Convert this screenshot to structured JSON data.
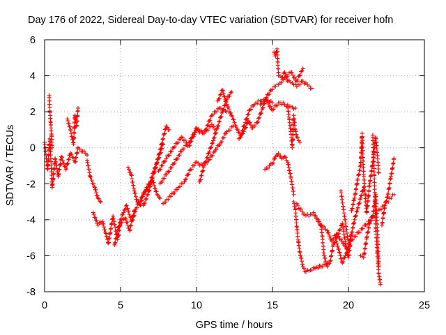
{
  "chart_data": {
    "type": "scatter",
    "title": "Day 176 of 2022, Sidereal Day-to-day VTEC variation (SDTVAR) for receiver hofn",
    "xlabel": "GPS time / hours",
    "ylabel": "SDTVAR / TECUs",
    "xlim": [
      0,
      25
    ],
    "ylim": [
      -8,
      6
    ],
    "xticks": [
      0,
      5,
      10,
      15,
      20,
      25
    ],
    "yticks": [
      -8,
      -6,
      -4,
      -2,
      0,
      2,
      4,
      6
    ],
    "grid": true,
    "marker": "+",
    "series_color": "#ff0000",
    "series": [
      {
        "name": "track-1",
        "x": [
          0.0,
          0.2,
          0.35,
          0.5,
          0.7,
          0.9,
          1.1,
          1.4,
          1.7,
          2.0,
          2.2,
          2.5,
          2.8
        ],
        "y": [
          0.3,
          -1.2,
          0.5,
          -2.2,
          -0.6,
          -1.6,
          -0.5,
          -1.2,
          -0.3,
          -0.8,
          0.0,
          -0.2,
          -0.4
        ]
      },
      {
        "name": "track-2",
        "x": [
          0.3,
          0.35,
          0.4,
          0.45,
          0.5
        ],
        "y": [
          2.9,
          2.0,
          1.4,
          0.7,
          0.0
        ]
      },
      {
        "name": "track-3",
        "x": [
          1.5,
          1.7,
          1.9,
          2.0,
          2.1,
          2.2
        ],
        "y": [
          1.6,
          1.0,
          0.2,
          1.8,
          1.2,
          2.2
        ]
      },
      {
        "name": "track-4",
        "x": [
          2.8,
          3.0,
          3.3,
          3.5,
          3.7
        ],
        "y": [
          -0.7,
          -1.6,
          -2.2,
          -2.8,
          -3.0
        ]
      },
      {
        "name": "track-5",
        "x": [
          3.2,
          3.5,
          3.8,
          4.0,
          4.2,
          4.5,
          4.8,
          5.0,
          5.3,
          5.6,
          5.9
        ],
        "y": [
          -3.6,
          -4.3,
          -4.1,
          -4.7,
          -5.3,
          -3.8,
          -5.1,
          -4.2,
          -3.9,
          -4.6,
          -3.5
        ]
      },
      {
        "name": "track-6",
        "x": [
          4.6,
          4.8,
          5.0,
          5.2,
          5.4,
          5.6,
          5.8,
          6.0,
          6.3,
          6.6,
          6.9,
          7.2,
          7.5,
          7.8
        ],
        "y": [
          -5.4,
          -4.6,
          -4.0,
          -3.6,
          -3.2,
          -3.8,
          -4.0,
          -3.4,
          -2.9,
          -2.4,
          -2.0,
          -1.3,
          -0.6,
          0.2
        ]
      },
      {
        "name": "track-7",
        "x": [
          5.5,
          5.7,
          5.9,
          6.1,
          6.3,
          6.5,
          6.8,
          7.1,
          7.4,
          7.6
        ],
        "y": [
          -1.1,
          -1.5,
          -2.4,
          -3.0,
          -3.2,
          -2.6,
          -2.2,
          -1.8,
          -2.6,
          -2.8
        ]
      },
      {
        "name": "track-8",
        "x": [
          6.5,
          6.8,
          7.1,
          7.4,
          7.7,
          8.0,
          8.2
        ],
        "y": [
          -3.2,
          -2.6,
          -1.7,
          -0.8,
          0.2,
          1.2,
          1.0
        ]
      },
      {
        "name": "track-9",
        "x": [
          7.5,
          8.0,
          8.5,
          9.0,
          9.5,
          10.0,
          10.5,
          11.0,
          11.5,
          12.0
        ],
        "y": [
          -1.3,
          -0.6,
          0.0,
          0.6,
          0.1,
          1.1,
          0.8,
          1.8,
          2.2,
          2.0
        ]
      },
      {
        "name": "track-10",
        "x": [
          7.6,
          8.0,
          8.5,
          9.0,
          9.5,
          10.0,
          10.5,
          11.0,
          11.2
        ],
        "y": [
          -2.0,
          -1.5,
          -0.9,
          -0.2,
          0.3,
          1.0,
          0.8,
          1.3,
          1.0
        ]
      },
      {
        "name": "track-11",
        "x": [
          7.8,
          8.3,
          8.8,
          9.2,
          9.6,
          10.0,
          10.4,
          10.8,
          11.2,
          11.6,
          12.0,
          12.4
        ],
        "y": [
          -3.1,
          -2.7,
          -2.2,
          -1.9,
          -1.2,
          -0.8,
          -1.0,
          -0.7,
          -0.2,
          0.3,
          0.9,
          1.2
        ]
      },
      {
        "name": "track-12",
        "x": [
          10.2,
          10.5,
          10.8,
          11.1,
          11.4,
          11.7,
          12.0,
          12.3
        ],
        "y": [
          -1.9,
          -1.0,
          -0.3,
          0.4,
          1.2,
          2.0,
          2.7,
          3.1
        ]
      },
      {
        "name": "track-13",
        "x": [
          11.4,
          11.7,
          12.0,
          12.3,
          12.6,
          12.9,
          13.2,
          13.5,
          13.8,
          14.2,
          14.6,
          15.0
        ],
        "y": [
          2.6,
          3.2,
          2.4,
          1.8,
          1.2,
          0.6,
          1.4,
          2.1,
          2.4,
          2.6,
          2.7,
          2.5
        ]
      },
      {
        "name": "track-14",
        "x": [
          12.8,
          13.1,
          13.4,
          13.7,
          14.0,
          14.3,
          14.6,
          14.9,
          15.2,
          15.5,
          15.8,
          16.2,
          16.6,
          17.0
        ],
        "y": [
          0.5,
          0.9,
          1.5,
          1.1,
          1.4,
          2.1,
          2.8,
          3.2,
          3.4,
          3.6,
          3.9,
          4.2,
          3.7,
          4.4
        ]
      },
      {
        "name": "track-15",
        "x": [
          14.2,
          14.6,
          15.0,
          15.4,
          15.8,
          16.2,
          16.5
        ],
        "y": [
          2.4,
          2.6,
          2.1,
          2.5,
          2.4,
          2.3,
          2.2
        ]
      },
      {
        "name": "track-16",
        "x": [
          15.1,
          15.2,
          15.3,
          15.4,
          15.6,
          15.8,
          16.0,
          16.3,
          16.6,
          17.0,
          17.3,
          17.6
        ],
        "y": [
          5.3,
          5.1,
          5.5,
          4.0,
          3.9,
          4.2,
          3.7,
          3.6,
          3.4,
          3.7,
          3.5,
          3.3
        ]
      },
      {
        "name": "track-17",
        "x": [
          16.0,
          16.1,
          16.2,
          16.3,
          16.4,
          16.5,
          16.6,
          16.8
        ],
        "y": [
          2.3,
          1.6,
          0.9,
          0.0,
          1.8,
          1.0,
          0.6,
          0.3
        ]
      },
      {
        "name": "track-18",
        "x": [
          14.5,
          14.8,
          15.0,
          15.2,
          15.4,
          15.6,
          15.8,
          16.0,
          16.2,
          16.4
        ],
        "y": [
          -1.2,
          -1.0,
          -0.9,
          -0.5,
          -0.3,
          -0.6,
          -0.5,
          -0.8,
          -1.6,
          -2.6
        ]
      },
      {
        "name": "track-19",
        "x": [
          16.4,
          16.5,
          16.6,
          16.7,
          16.8,
          17.0,
          17.2,
          17.5,
          17.8,
          18.2,
          18.6
        ],
        "y": [
          -3.0,
          -3.4,
          -4.4,
          -5.2,
          -5.8,
          -6.6,
          -6.9,
          -6.8,
          -6.7,
          -6.6,
          -6.4
        ]
      },
      {
        "name": "track-20",
        "x": [
          16.6,
          16.8,
          17.1,
          17.4,
          17.7,
          18.0,
          18.3,
          18.6,
          18.9,
          19.2,
          19.5,
          19.9
        ],
        "y": [
          -3.1,
          -3.4,
          -3.7,
          -3.8,
          -3.6,
          -4.1,
          -4.4,
          -4.6,
          -5.2,
          -4.8,
          -5.1,
          -5.6
        ]
      },
      {
        "name": "track-21",
        "x": [
          18.0,
          18.2,
          18.4,
          18.6,
          18.8,
          19.0,
          19.2,
          19.4,
          19.6,
          19.8,
          20.0,
          20.2
        ],
        "y": [
          -4.0,
          -4.3,
          -6.0,
          -6.6,
          -6.3,
          -5.4,
          -5.0,
          -4.6,
          -4.2,
          -5.3,
          -6.1,
          -4.8
        ]
      },
      {
        "name": "track-22",
        "x": [
          19.2,
          19.4,
          19.6,
          19.8,
          20.0,
          20.2,
          20.4,
          20.6,
          20.8,
          21.0
        ],
        "y": [
          -5.2,
          -5.8,
          -6.4,
          -6.0,
          -5.6,
          -4.8,
          -4.0,
          -3.4,
          -2.8,
          -2.2
        ]
      },
      {
        "name": "track-23",
        "x": [
          20.2,
          20.4,
          20.6,
          20.8,
          20.9,
          21.0,
          21.1,
          21.2,
          21.4,
          21.6,
          21.8,
          22.0
        ],
        "y": [
          -3.5,
          -2.8,
          -1.8,
          -1.0,
          0.8,
          -1.5,
          -2.6,
          -3.6,
          -2.0,
          -0.8,
          0.6,
          -1.4
        ]
      },
      {
        "name": "track-24",
        "x": [
          20.8,
          21.0,
          21.2,
          21.4,
          21.6,
          21.8,
          22.0
        ],
        "y": [
          -6.0,
          -6.1,
          -5.0,
          -4.2,
          -3.8,
          -2.6,
          -6.6
        ]
      },
      {
        "name": "track-25",
        "x": [
          21.6,
          21.7,
          21.8,
          21.9,
          22.0,
          22.1
        ],
        "y": [
          0.7,
          -1.5,
          -4.5,
          -5.8,
          -7.0,
          -7.6
        ]
      },
      {
        "name": "track-26",
        "x": [
          22.2,
          22.4,
          22.6,
          22.8,
          23.0
        ],
        "y": [
          -4.3,
          -3.2,
          -2.6,
          -1.6,
          -0.6
        ]
      },
      {
        "name": "track-27",
        "x": [
          19.5,
          20.0,
          23.0
        ],
        "y": [
          -2.4,
          -5.3,
          -2.6
        ]
      }
    ]
  }
}
